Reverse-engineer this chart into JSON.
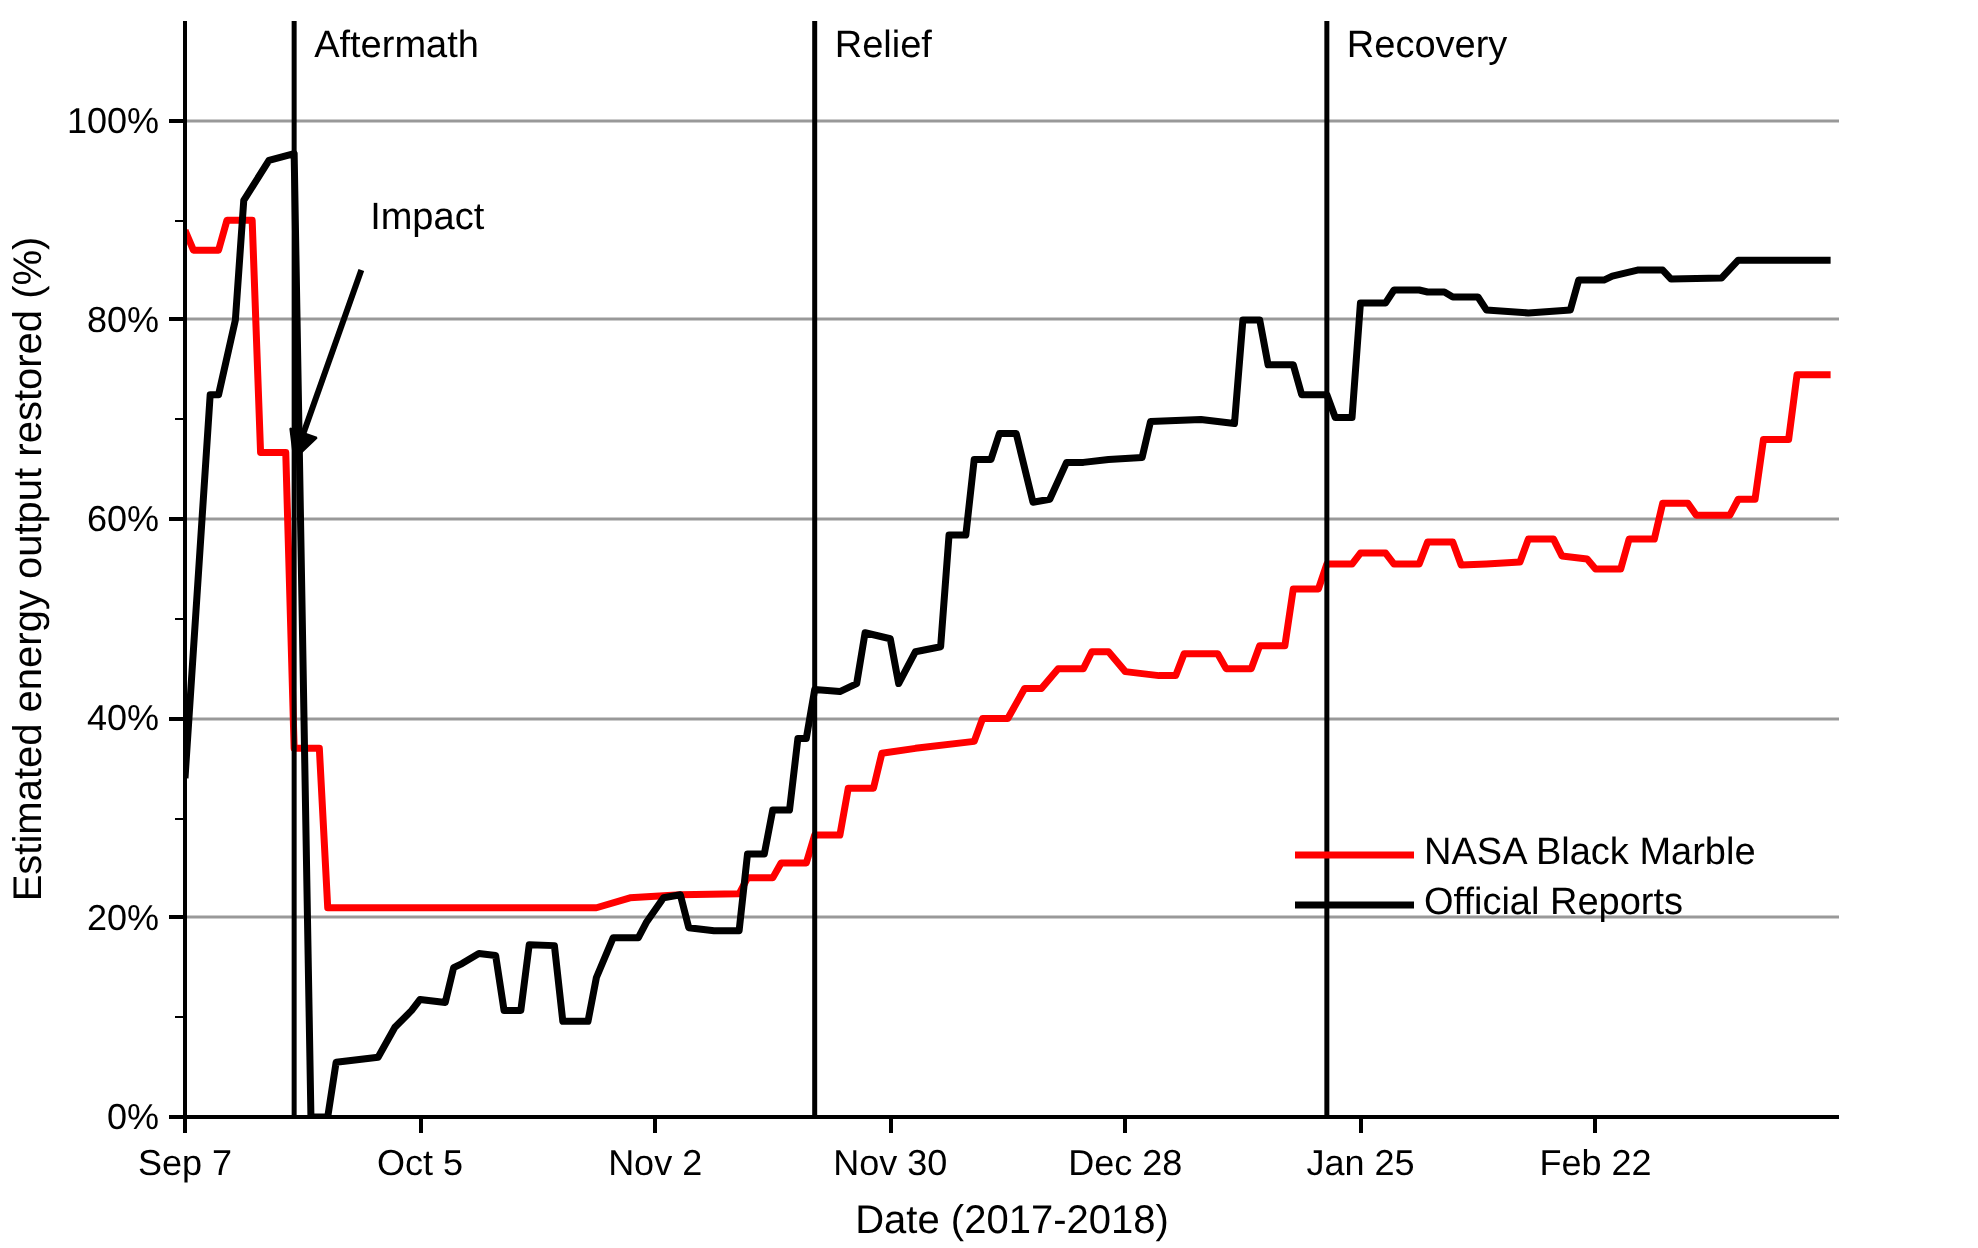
{
  "chart_data": {
    "type": "line",
    "xlabel": "Date (2017-2018)",
    "ylabel": "Estimated energy output restored (%)",
    "xlim": [
      "2017-09-07",
      "2018-03-23"
    ],
    "xticks": [
      {
        "value": "2017-09-07",
        "label": "Sep 7"
      },
      {
        "value": "2017-10-05",
        "label": "Oct 5"
      },
      {
        "value": "2017-11-02",
        "label": "Nov 2"
      },
      {
        "value": "2017-11-30",
        "label": "Nov 30"
      },
      {
        "value": "2017-12-28",
        "label": "Dec 28"
      },
      {
        "value": "2018-01-25",
        "label": "Jan 25"
      },
      {
        "value": "2018-02-22",
        "label": "Feb 22"
      }
    ],
    "ylim": [
      0,
      110
    ],
    "yticks": [
      {
        "value": 0,
        "label": "0%"
      },
      {
        "value": 20,
        "label": "20%"
      },
      {
        "value": 40,
        "label": "40%"
      },
      {
        "value": 60,
        "label": "60%"
      },
      {
        "value": 80,
        "label": "80%"
      },
      {
        "value": 100,
        "label": "100%"
      }
    ],
    "grid": "y",
    "legend": "right",
    "line_style": "solid",
    "series": [
      {
        "name": "NASA Black Marble",
        "color": "#ff0000",
        "x": [
          "2017-09-07",
          "2017-09-08",
          "2017-09-11",
          "2017-09-12",
          "2017-09-15",
          "2017-09-16",
          "2017-09-19",
          "2017-09-20",
          "2017-09-23",
          "2017-09-24",
          "2017-10-26",
          "2017-10-30",
          "2017-11-05",
          "2017-11-12",
          "2017-11-13",
          "2017-11-16",
          "2017-11-17",
          "2017-11-20",
          "2017-11-21",
          "2017-11-24",
          "2017-11-25",
          "2017-11-28",
          "2017-11-29",
          "2017-12-03",
          "2017-12-10",
          "2017-12-11",
          "2017-12-14",
          "2017-12-16",
          "2017-12-18",
          "2017-12-20",
          "2017-12-23",
          "2017-12-24",
          "2017-12-26",
          "2017-12-28",
          "2018-01-01",
          "2018-01-03",
          "2018-01-04",
          "2018-01-08",
          "2018-01-09",
          "2018-01-12",
          "2018-01-13",
          "2018-01-16",
          "2018-01-17",
          "2018-01-20",
          "2018-01-21",
          "2018-01-24",
          "2018-01-25",
          "2018-01-28",
          "2018-01-29",
          "2018-02-01",
          "2018-02-02",
          "2018-02-05",
          "2018-02-06",
          "2018-02-09",
          "2018-02-13",
          "2018-02-14",
          "2018-02-17",
          "2018-02-18",
          "2018-02-21",
          "2018-02-22",
          "2018-02-25",
          "2018-02-26",
          "2018-03-01",
          "2018-03-02",
          "2018-03-05",
          "2018-03-06",
          "2018-03-10",
          "2018-03-11",
          "2018-03-13",
          "2018-03-14",
          "2018-03-17",
          "2018-03-18",
          "2018-03-22"
        ],
        "values": [
          89,
          87,
          87,
          90,
          90,
          66.7,
          66.7,
          37,
          37,
          21,
          21,
          22,
          22.3,
          22.4,
          24,
          24,
          25.5,
          25.5,
          28.3,
          28.3,
          33,
          33,
          36.5,
          37,
          37.7,
          40,
          40,
          43,
          43,
          45,
          45,
          46.7,
          46.7,
          44.7,
          44.3,
          44.3,
          46.5,
          46.5,
          45,
          45,
          47.3,
          47.3,
          53,
          53,
          55.5,
          55.5,
          56.6,
          56.6,
          55.5,
          55.5,
          57.7,
          57.7,
          55.4,
          55.5,
          55.7,
          58,
          58,
          56.3,
          56,
          55,
          55,
          58,
          58,
          61.6,
          61.6,
          60.4,
          60.4,
          62,
          62,
          68,
          68,
          74.5,
          74.5
        ]
      },
      {
        "name": "Official Reports",
        "color": "#000000",
        "x": [
          "2017-09-07",
          "2017-09-10",
          "2017-09-11",
          "2017-09-13",
          "2017-09-14",
          "2017-09-17",
          "2017-09-20",
          "2017-09-22",
          "2017-09-24",
          "2017-09-25",
          "2017-09-30",
          "2017-10-02",
          "2017-10-04",
          "2017-10-05",
          "2017-10-08",
          "2017-10-09",
          "2017-10-10",
          "2017-10-12",
          "2017-10-14",
          "2017-10-15",
          "2017-10-17",
          "2017-10-18",
          "2017-10-21",
          "2017-10-22",
          "2017-10-25",
          "2017-10-26",
          "2017-10-28",
          "2017-10-31",
          "2017-11-01",
          "2017-11-03",
          "2017-11-05",
          "2017-11-06",
          "2017-11-09",
          "2017-11-12",
          "2017-11-13",
          "2017-11-15",
          "2017-11-16",
          "2017-11-18",
          "2017-11-19",
          "2017-11-20",
          "2017-11-21",
          "2017-11-24",
          "2017-11-26",
          "2017-11-27",
          "2017-11-30",
          "2017-12-01",
          "2017-12-03",
          "2017-12-06",
          "2017-12-07",
          "2017-12-09",
          "2017-12-10",
          "2017-12-12",
          "2017-12-13",
          "2017-12-15",
          "2017-12-17",
          "2017-12-19",
          "2017-12-21",
          "2017-12-23",
          "2017-12-26",
          "2017-12-30",
          "2017-12-31",
          "2018-01-06",
          "2018-01-10",
          "2018-01-11",
          "2018-01-13",
          "2018-01-14",
          "2018-01-17",
          "2018-01-18",
          "2018-01-21",
          "2018-01-22",
          "2018-01-24",
          "2018-01-25",
          "2018-01-28",
          "2018-01-29",
          "2018-02-01",
          "2018-02-02",
          "2018-02-04",
          "2018-02-05",
          "2018-02-08",
          "2018-02-09",
          "2018-02-14",
          "2018-02-19",
          "2018-02-20",
          "2018-02-23",
          "2018-02-24",
          "2018-02-27",
          "2018-03-02",
          "2018-03-03",
          "2018-03-09",
          "2018-03-11",
          "2018-03-22"
        ],
        "values": [
          34,
          72.5,
          72.5,
          80,
          92,
          96,
          96.7,
          0,
          0,
          5.5,
          6,
          9,
          10.7,
          11.8,
          11.5,
          15,
          15.4,
          16.4,
          16.2,
          10.7,
          10.7,
          17.3,
          17.2,
          9.6,
          9.6,
          14,
          18,
          18,
          19.6,
          22,
          22.3,
          19,
          18.7,
          18.7,
          26.4,
          26.4,
          30.8,
          30.8,
          38,
          38,
          42.9,
          42.7,
          43.5,
          48.6,
          48,
          43.5,
          46.7,
          47.2,
          58.4,
          58.4,
          66,
          66,
          68.6,
          68.6,
          61.7,
          62,
          65.7,
          65.7,
          66,
          66.2,
          69.8,
          70,
          69.6,
          80,
          80,
          75.5,
          75.5,
          72.5,
          72.5,
          70.2,
          70.2,
          81.7,
          81.7,
          83,
          83,
          82.8,
          82.8,
          82.3,
          82.3,
          81,
          80.7,
          81,
          84,
          84,
          84.4,
          85,
          85,
          84.1,
          84.2,
          86,
          86
        ]
      }
    ],
    "ref_lines": [
      {
        "axis": "x",
        "value": "2017-09-20",
        "label": "Aftermath",
        "color": "#000000"
      },
      {
        "axis": "x",
        "value": "2017-11-21",
        "label": "Relief",
        "color": "#000000"
      },
      {
        "axis": "x",
        "value": "2018-01-21",
        "label": "Recovery",
        "color": "#000000"
      }
    ],
    "annotations": [
      {
        "text": "Impact",
        "x": "2017-09-20",
        "y": 66
      }
    ]
  }
}
